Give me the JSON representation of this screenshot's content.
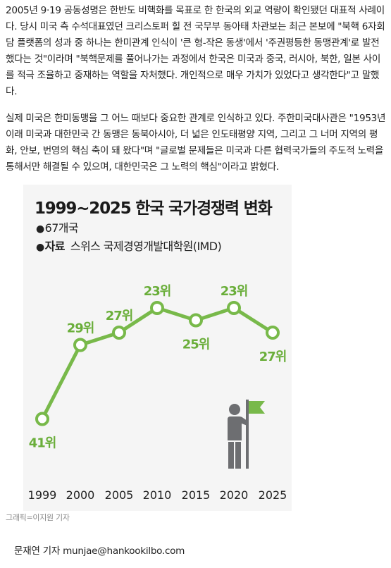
{
  "article": {
    "paragraph1": "2005년 9·19 공동성명은 한반도 비핵화를 목표로 한 한국의 외교 역량이 확인됐던 대표적 사례이다. 당시 미국 측 수석대표였던 크리스토퍼 힐 전 국무부 동아태 차관보는 최근 본보에 \"북핵 6자회담 플랫폼의 성과 중 하나는 한미관계 인식이 '큰 형-작은 동생'에서 '주권평등한 동맹관계'로 발전했다는 것\"이라며 \"북핵문제를 풀어나가는 과정에서 한국은 미국과 중국, 러시아, 북한, 일본 사이를 적극 조율하고 중재하는 역할을 자처했다. 개인적으로 매우 가치가 있었다고 생각한다\"고 말했다.",
    "paragraph2": "실제 미국은 한미동맹을 그 어느 때보다 중요한 관계로 인식하고 있다. 주한미국대사관은 \"1953년 이래 미국과 대한민국 간 동맹은 동북아시아, 더 넓은 인도태평양 지역, 그리고 그 너머 지역의 평화, 안보, 번영의 핵심 축이 돼 왔다\"며 \"글로벌 문제들은 미국과 다른 협력국가들의 주도적 노력을 통해서만 해결될 수 있으며, 대한민국은 그 노력의 핵심\"이라고 밝혔다."
  },
  "graphic": {
    "title": "1999~2025 한국 국가경쟁력 변화",
    "bullet": "●",
    "units_note": "67개국",
    "source_label": "자료",
    "source_text": "스위스 국제경영개발대학원(IMD)",
    "credit": "그래픽=이지원 기자"
  },
  "chart_data": {
    "type": "line",
    "title": "1999~2025 한국 국가경쟁력 변화",
    "x": [
      1999,
      2000,
      2005,
      2010,
      2015,
      2020,
      2025
    ],
    "series": [
      {
        "values": [
          41,
          29,
          27,
          23,
          25,
          23,
          27
        ],
        "labels": [
          "41위",
          "29위",
          "27위",
          "23위",
          "25위",
          "23위",
          "27위"
        ]
      }
    ],
    "ylim": [
      45,
      20
    ],
    "inverted_y": true,
    "colors": {
      "line": "#78b94a",
      "marker_fill": "#ffffff",
      "label": "#6aae3a",
      "axis_text": "#222222",
      "icon": "#6d6e71"
    },
    "grid": false,
    "legend": "none"
  },
  "icons": {
    "person_with_flag": "person-with-flag-icon"
  },
  "byline": {
    "text": "문재연 기자 munjae@hankookilbo.com"
  }
}
